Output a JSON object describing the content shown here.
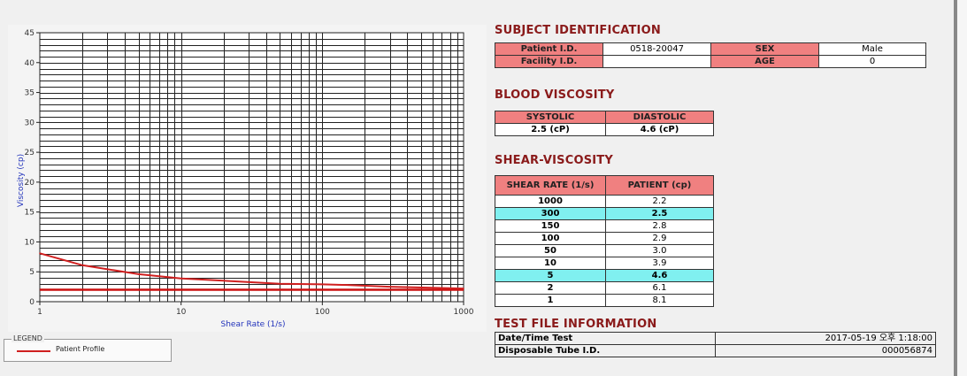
{
  "chart_data": {
    "type": "line",
    "xlabel": "Shear Rate (1/s)",
    "ylabel": "Viscosity (cp)",
    "x_scale": "log",
    "xlim": [
      1,
      1000
    ],
    "ylim": [
      0,
      45
    ],
    "x_ticks": [
      "1",
      "10",
      "100",
      "1000"
    ],
    "y_ticks": [
      "0",
      "5",
      "10",
      "15",
      "20",
      "25",
      "30",
      "35",
      "40",
      "45"
    ],
    "grid": true,
    "series": [
      {
        "name": "Patient Profile",
        "color": "#d02020",
        "x": [
          1,
          2,
          5,
          10,
          50,
          100,
          150,
          300,
          1000
        ],
        "y": [
          8.1,
          6.1,
          4.6,
          3.9,
          3.0,
          2.9,
          2.8,
          2.5,
          2.2
        ]
      }
    ],
    "reference_line": {
      "y": 2.0,
      "color": "#cc1010"
    }
  },
  "legend": {
    "title": "LEGEND",
    "items": [
      {
        "label": "Patient Profile",
        "color": "#d02020"
      }
    ]
  },
  "subject": {
    "title": "SUBJECT IDENTIFICATION",
    "patient_id_label": "Patient I.D.",
    "patient_id": "0518-20047",
    "sex_label": "SEX",
    "sex": "Male",
    "facility_id_label": "Facility I.D.",
    "facility_id": "",
    "age_label": "AGE",
    "age": "0"
  },
  "blood": {
    "title": "BLOOD VISCOSITY",
    "systolic_label": "SYSTOLIC",
    "diastolic_label": "DIASTOLIC",
    "systolic": "2.5 (cP)",
    "diastolic": "4.6 (cP)"
  },
  "shear": {
    "title": "SHEAR-VISCOSITY",
    "col1": "SHEAR RATE (1/s)",
    "col2": "PATIENT (cp)",
    "rows": [
      {
        "rate": "1000",
        "value": "2.2",
        "highlight": false
      },
      {
        "rate": "300",
        "value": "2.5",
        "highlight": true
      },
      {
        "rate": "150",
        "value": "2.8",
        "highlight": false
      },
      {
        "rate": "100",
        "value": "2.9",
        "highlight": false
      },
      {
        "rate": "50",
        "value": "3.0",
        "highlight": false
      },
      {
        "rate": "10",
        "value": "3.9",
        "highlight": false
      },
      {
        "rate": "5",
        "value": "4.6",
        "highlight": true
      },
      {
        "rate": "2",
        "value": "6.1",
        "highlight": false
      },
      {
        "rate": "1",
        "value": "8.1",
        "highlight": false
      }
    ]
  },
  "testfile": {
    "title": "TEST FILE INFORMATION",
    "datetime_label": "Date/Time Test",
    "datetime": "2017-05-19  오후 1:18:00",
    "tube_label": "Disposable Tube I.D.",
    "tube": "000056874"
  }
}
